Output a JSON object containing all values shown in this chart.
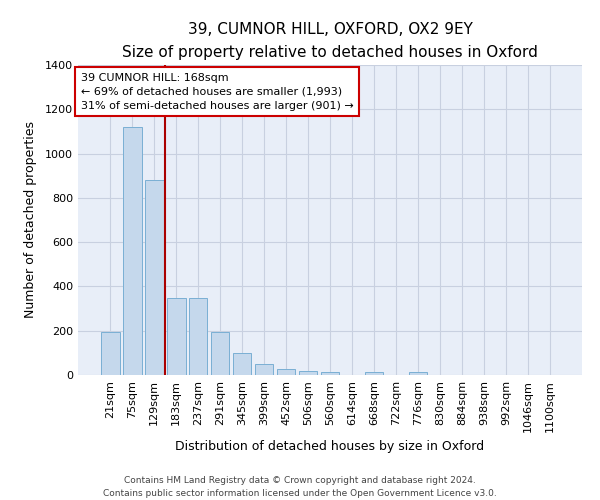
{
  "title1": "39, CUMNOR HILL, OXFORD, OX2 9EY",
  "title2": "Size of property relative to detached houses in Oxford",
  "xlabel": "Distribution of detached houses by size in Oxford",
  "ylabel": "Number of detached properties",
  "categories": [
    "21sqm",
    "75sqm",
    "129sqm",
    "183sqm",
    "237sqm",
    "291sqm",
    "345sqm",
    "399sqm",
    "452sqm",
    "506sqm",
    "560sqm",
    "614sqm",
    "668sqm",
    "722sqm",
    "776sqm",
    "830sqm",
    "884sqm",
    "938sqm",
    "992sqm",
    "1046sqm",
    "1100sqm"
  ],
  "values": [
    193,
    1120,
    880,
    350,
    350,
    193,
    100,
    50,
    25,
    20,
    15,
    0,
    13,
    0,
    13,
    0,
    0,
    0,
    0,
    0,
    0
  ],
  "bar_color": "#c5d8ec",
  "bar_edge_color": "#7aafd4",
  "bg_color": "#e8eef8",
  "grid_color": "#c8d0e0",
  "annotation_text": "39 CUMNOR HILL: 168sqm\n← 69% of detached houses are smaller (1,993)\n31% of semi-detached houses are larger (901) →",
  "vline_x": 2.48,
  "vline_color": "#aa0000",
  "box_color": "#cc0000",
  "footer": "Contains HM Land Registry data © Crown copyright and database right 2024.\nContains public sector information licensed under the Open Government Licence v3.0.",
  "ylim": [
    0,
    1400
  ],
  "yticks": [
    0,
    200,
    400,
    600,
    800,
    1000,
    1200,
    1400
  ],
  "title1_fontsize": 11,
  "title2_fontsize": 9,
  "ylabel_fontsize": 9,
  "xlabel_fontsize": 9,
  "tick_fontsize": 8,
  "ann_fontsize": 8
}
